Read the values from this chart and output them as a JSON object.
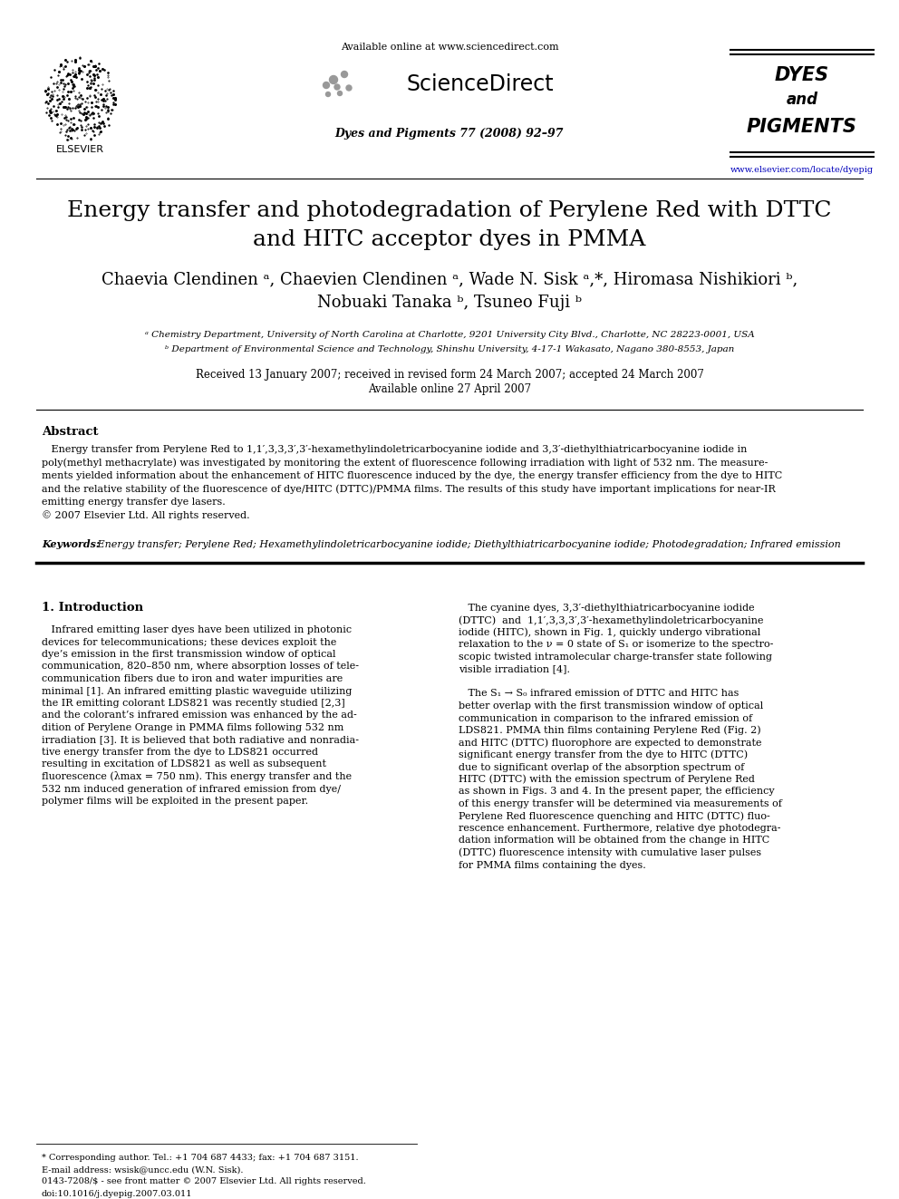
{
  "page_width": 9.92,
  "page_height": 13.23,
  "bg_color": "#ffffff",
  "header": {
    "available_online": "Available online at www.sciencedirect.com",
    "sciencedirect": "ScienceDirect",
    "journal_ref": "Dyes and Pigments 77 (2008) 92–97",
    "journal_name_line1": "DYES",
    "journal_name_line2": "and",
    "journal_name_line3": "PIGMENTS",
    "journal_url": "www.elsevier.com/locate/dyepig",
    "url_color": "#0000bb"
  },
  "title_line1": "Energy transfer and photodegradation of Perylene Red with DTTC",
  "title_line2": "and HITC acceptor dyes in PMMA",
  "title_fontsize": 18,
  "authors_line1": "Chaevia Clendinen ᵃ, Chaevien Clendinen ᵃ, Wade N. Sisk ᵃ,*, Hiromasa Nishikiori ᵇ,",
  "authors_line2": "Nobuaki Tanaka ᵇ, Tsuneo Fuji ᵇ",
  "authors_fontsize": 13,
  "affil_line1": "ᵃ Chemistry Department, University of North Carolina at Charlotte, 9201 University City Blvd., Charlotte, NC 28223-0001, USA",
  "affil_line2": "ᵇ Department of Environmental Science and Technology, Shinshu University, 4-17-1 Wakasato, Nagano 380-8553, Japan",
  "affil_fontsize": 7.5,
  "dates_line1": "Received 13 January 2007; received in revised form 24 March 2007; accepted 24 March 2007",
  "dates_line2": "Available online 27 April 2007",
  "dates_fontsize": 8.5,
  "abstract_heading": "Abstract",
  "abstract_lines": [
    "   Energy transfer from Perylene Red to 1,1′,3,3,3′,3′-hexamethylindoletricarbocyanine iodide and 3,3′-diethylthiatricarbocyanine iodide in",
    "poly(methyl methacrylate) was investigated by monitoring the extent of fluorescence following irradiation with light of 532 nm. The measure-",
    "ments yielded information about the enhancement of HITC fluorescence induced by the dye, the energy transfer efficiency from the dye to HITC",
    "and the relative stability of the fluorescence of dye/HITC (DTTC)/PMMA films. The results of this study have important implications for near-IR",
    "emitting energy transfer dye lasers.",
    "© 2007 Elsevier Ltd. All rights reserved."
  ],
  "abstract_fontsize": 8,
  "keywords_label": "Keywords:",
  "keywords_text": " Energy transfer; Perylene Red; Hexamethylindoletricarbocyanine iodide; Diethylthiatricarbocyanine iodide; Photodegradation; Infrared emission",
  "keywords_fontsize": 8,
  "section1_heading": "1. Introduction",
  "col1_lines": [
    "   Infrared emitting laser dyes have been utilized in photonic",
    "devices for telecommunications; these devices exploit the",
    "dye’s emission in the first transmission window of optical",
    "communication, 820–850 nm, where absorption losses of tele-",
    "communication fibers due to iron and water impurities are",
    "minimal [1]. An infrared emitting plastic waveguide utilizing",
    "the IR emitting colorant LDS821 was recently studied [2,3]",
    "and the colorant’s infrared emission was enhanced by the ad-",
    "dition of Perylene Orange in PMMA films following 532 nm",
    "irradiation [3]. It is believed that both radiative and nonradia-",
    "tive energy transfer from the dye to LDS821 occurred",
    "resulting in excitation of LDS821 as well as subsequent",
    "fluorescence (λmax = 750 nm). This energy transfer and the",
    "532 nm induced generation of infrared emission from dye/",
    "polymer films will be exploited in the present paper."
  ],
  "col2_lines": [
    "   The cyanine dyes, 3,3′-diethylthiatricarbocyanine iodide",
    "(DTTC)  and  1,1′,3,3,3′,3′-hexamethylindoletricarbocyanine",
    "iodide (HITC), shown in Fig. 1, quickly undergo vibrational",
    "relaxation to the ν = 0 state of S₁ or isomerize to the spectro-",
    "scopic twisted intramolecular charge-transfer state following",
    "visible irradiation [4].",
    "",
    "   The S₁ → S₀ infrared emission of DTTC and HITC has",
    "better overlap with the first transmission window of optical",
    "communication in comparison to the infrared emission of",
    "LDS821. PMMA thin films containing Perylene Red (Fig. 2)",
    "and HITC (DTTC) fluorophore are expected to demonstrate",
    "significant energy transfer from the dye to HITC (DTTC)",
    "due to significant overlap of the absorption spectrum of",
    "HITC (DTTC) with the emission spectrum of Perylene Red",
    "as shown in Figs. 3 and 4. In the present paper, the efficiency",
    "of this energy transfer will be determined via measurements of",
    "Perylene Red fluorescence quenching and HITC (DTTC) fluo-",
    "rescence enhancement. Furthermore, relative dye photodegra-",
    "dation information will be obtained from the change in HITC",
    "(DTTC) fluorescence intensity with cumulative laser pulses",
    "for PMMA films containing the dyes."
  ],
  "body_fontsize": 8,
  "footer_star_line": "* Corresponding author. Tel.: +1 704 687 4433; fax: +1 704 687 3151.",
  "footer_email_line": "E-mail address: wsisk@uncc.edu (W.N. Sisk).",
  "footer_issn_line": "0143-7208/$ - see front matter © 2007 Elsevier Ltd. All rights reserved.",
  "footer_doi_line": "doi:10.1016/j.dyepig.2007.03.011",
  "footer_fontsize": 7
}
